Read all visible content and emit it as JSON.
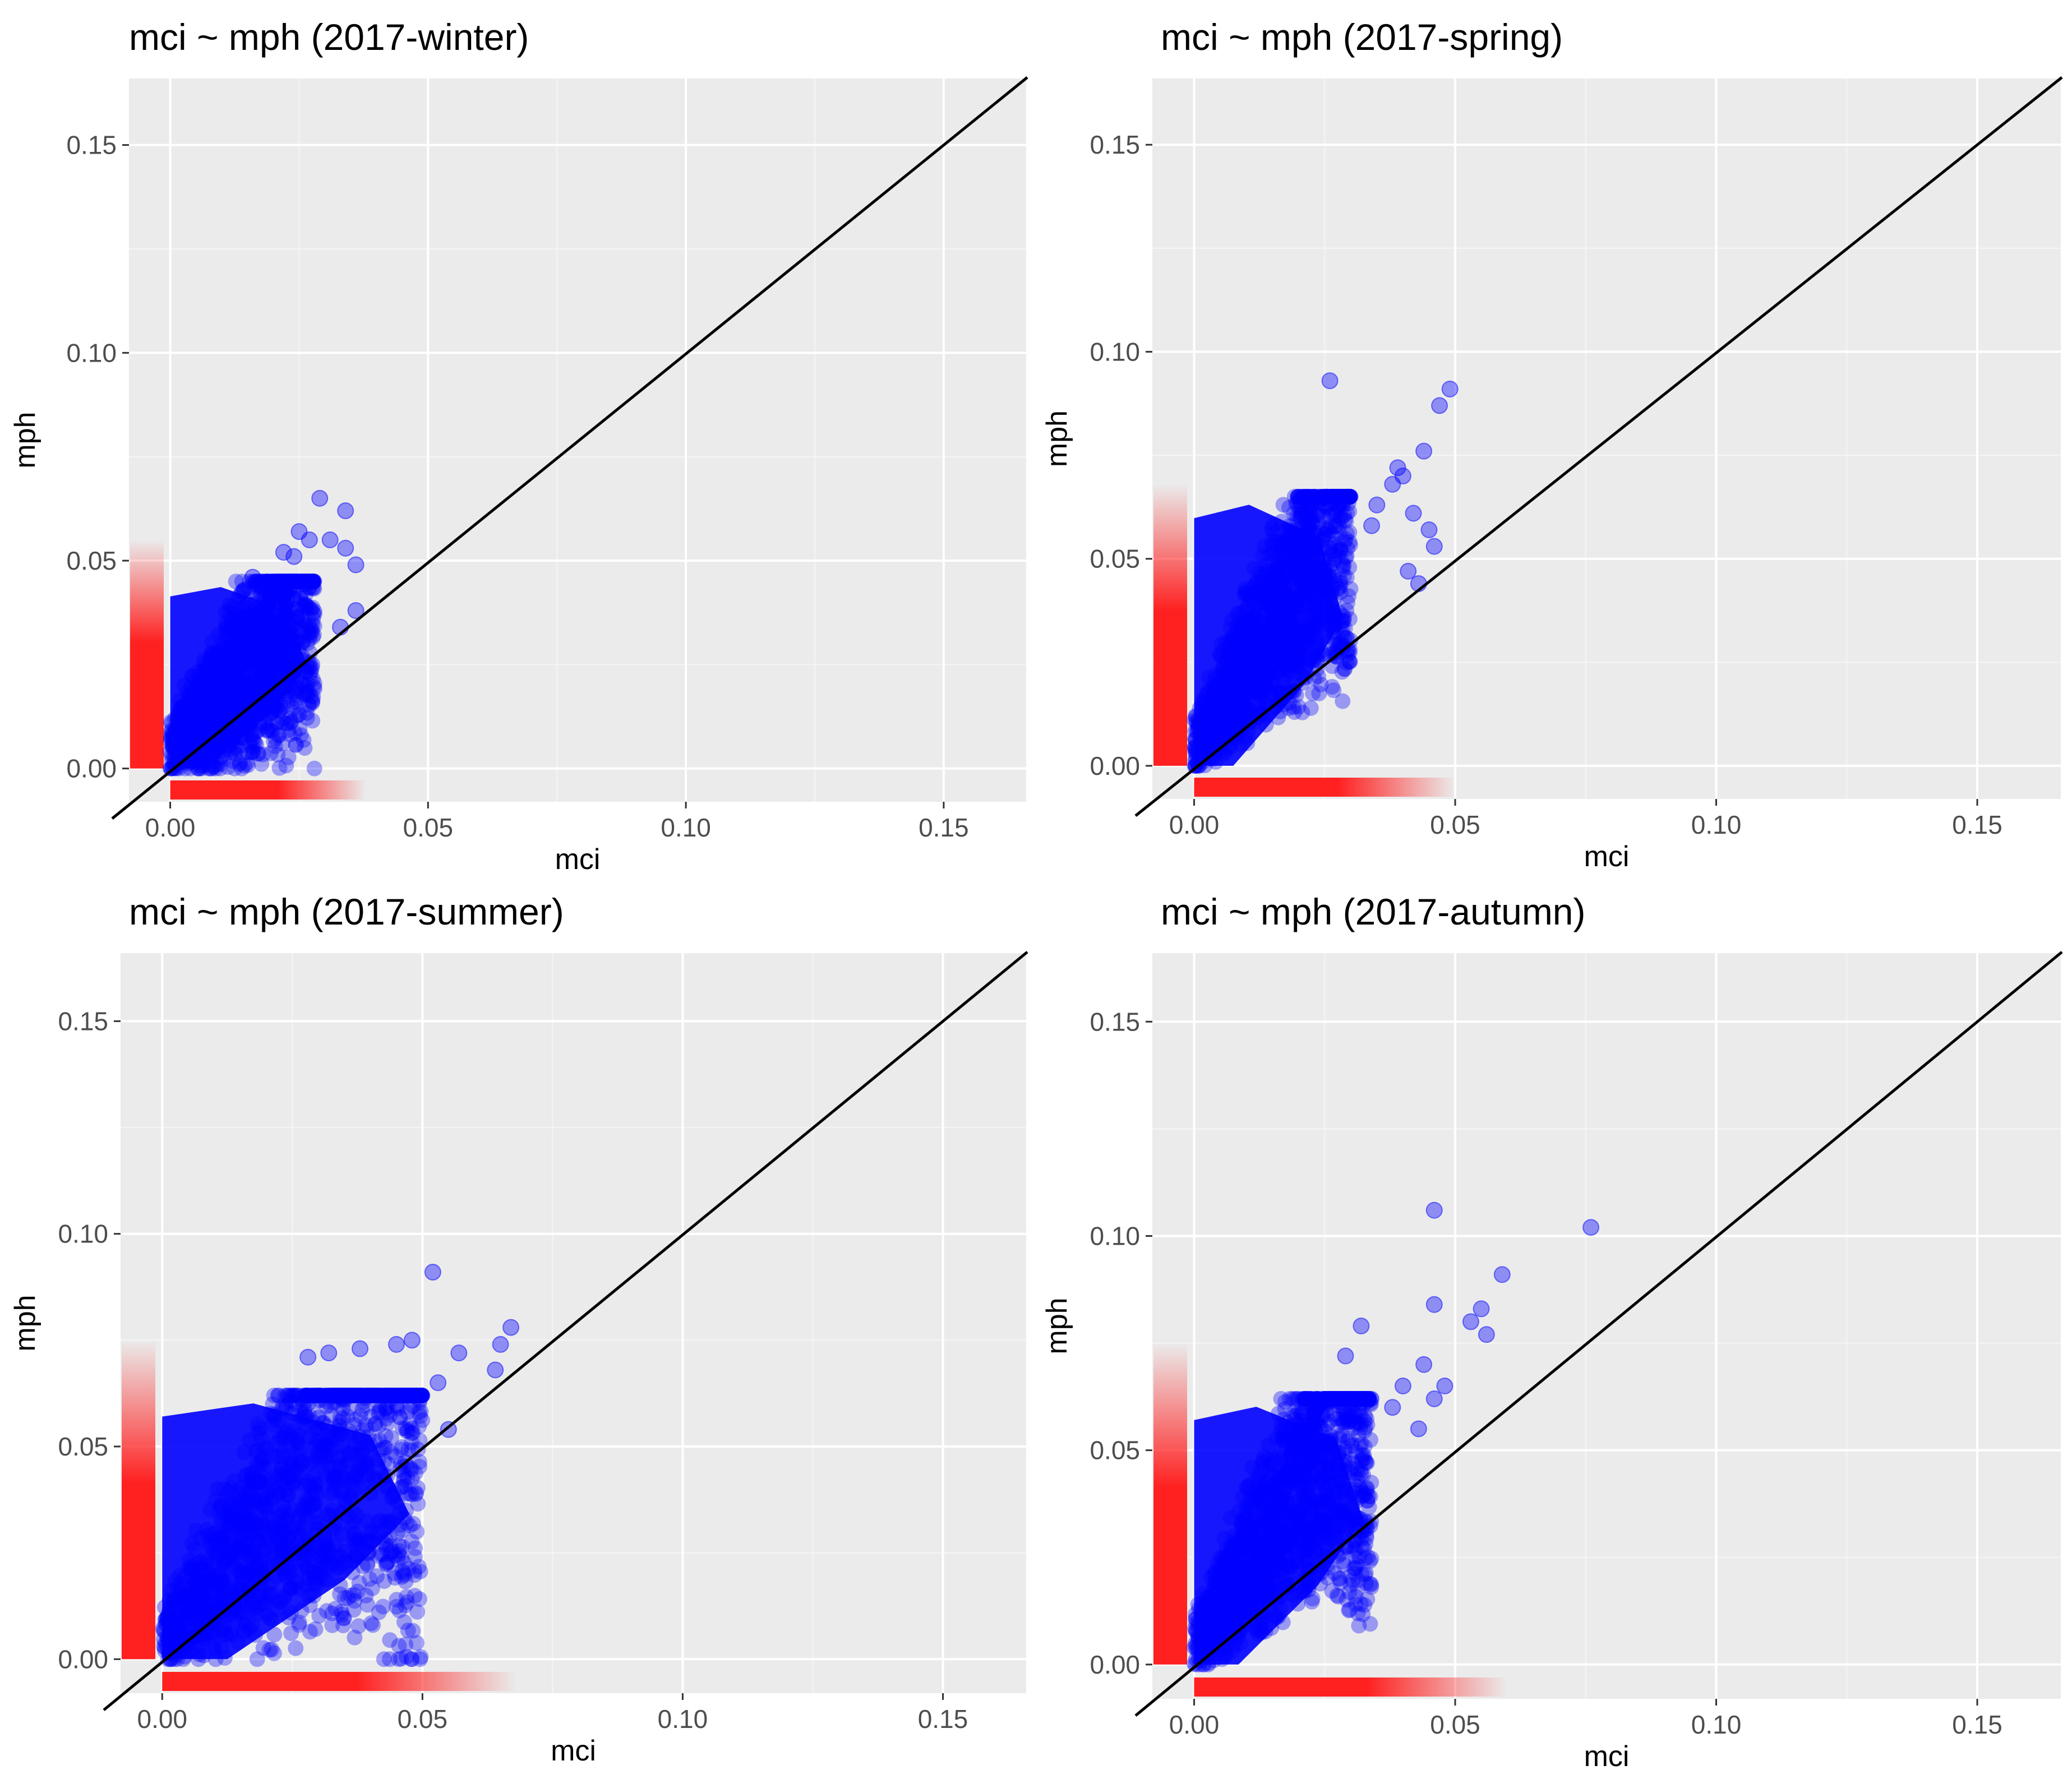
{
  "figure_name": "seasonal mci vs mph scatter panels",
  "chart_data": [
    {
      "type": "scatter",
      "title": "mci ~ mph (2017-winter)",
      "xlabel": "mci",
      "ylabel": "mph",
      "xlim": [
        -0.008,
        0.166
      ],
      "ylim": [
        -0.008,
        0.166
      ],
      "xticks": [
        0.0,
        0.05,
        0.1,
        0.15
      ],
      "yticks": [
        0.0,
        0.05,
        0.1,
        0.15
      ],
      "xtick_labels": [
        "0.00",
        "0.05",
        "0.10",
        "0.15"
      ],
      "ytick_labels": [
        "0.00",
        "0.05",
        "0.10",
        "0.15"
      ],
      "reference_line": "y = x",
      "point_color": "#0000ff",
      "rug_color": "#ff2020",
      "cloud": {
        "x_max": 0.028,
        "y_max": 0.045,
        "slope": 1.4
      },
      "outliers": [
        [
          0.029,
          0.065
        ],
        [
          0.034,
          0.062
        ],
        [
          0.025,
          0.057
        ],
        [
          0.027,
          0.055
        ],
        [
          0.031,
          0.055
        ],
        [
          0.036,
          0.049
        ],
        [
          0.034,
          0.053
        ],
        [
          0.024,
          0.051
        ],
        [
          0.036,
          0.038
        ],
        [
          0.033,
          0.034
        ],
        [
          0.022,
          0.052
        ],
        [
          0.016,
          0.046
        ]
      ],
      "rug_x_max": 0.038,
      "rug_y_max": 0.055
    },
    {
      "type": "scatter",
      "title": "mci ~ mph (2017-spring)",
      "xlabel": "mci",
      "ylabel": "mph",
      "xlim": [
        -0.008,
        0.166
      ],
      "ylim": [
        -0.008,
        0.166
      ],
      "xticks": [
        0.0,
        0.05,
        0.1,
        0.15
      ],
      "yticks": [
        0.0,
        0.05,
        0.1,
        0.15
      ],
      "xtick_labels": [
        "0.00",
        "0.05",
        "0.10",
        "0.15"
      ],
      "ytick_labels": [
        "0.00",
        "0.05",
        "0.10",
        "0.15"
      ],
      "reference_line": "y = x",
      "point_color": "#0000ff",
      "rug_color": "#ff2020",
      "cloud": {
        "x_max": 0.03,
        "y_max": 0.065,
        "slope": 2.2
      },
      "outliers": [
        [
          0.026,
          0.093
        ],
        [
          0.047,
          0.087
        ],
        [
          0.049,
          0.091
        ],
        [
          0.044,
          0.076
        ],
        [
          0.039,
          0.072
        ],
        [
          0.04,
          0.07
        ],
        [
          0.038,
          0.068
        ],
        [
          0.035,
          0.063
        ],
        [
          0.042,
          0.061
        ],
        [
          0.045,
          0.057
        ],
        [
          0.046,
          0.053
        ],
        [
          0.041,
          0.047
        ],
        [
          0.043,
          0.044
        ],
        [
          0.034,
          0.058
        ]
      ],
      "rug_x_max": 0.05,
      "rug_y_max": 0.068
    },
    {
      "type": "scatter",
      "title": "mci ~ mph (2017-summer)",
      "xlabel": "mci",
      "ylabel": "mph",
      "xlim": [
        -0.008,
        0.166
      ],
      "ylim": [
        -0.008,
        0.166
      ],
      "xticks": [
        0.0,
        0.05,
        0.1,
        0.15
      ],
      "yticks": [
        0.0,
        0.05,
        0.1,
        0.15
      ],
      "xtick_labels": [
        "0.00",
        "0.05",
        "0.10",
        "0.15"
      ],
      "ytick_labels": [
        "0.00",
        "0.05",
        "0.10",
        "0.15"
      ],
      "reference_line": "y = x",
      "point_color": "#0000ff",
      "rug_color": "#ff2020",
      "cloud": {
        "x_max": 0.05,
        "y_max": 0.062,
        "slope": 1.5
      },
      "outliers": [
        [
          0.052,
          0.091
        ],
        [
          0.067,
          0.078
        ],
        [
          0.065,
          0.074
        ],
        [
          0.064,
          0.068
        ],
        [
          0.057,
          0.072
        ],
        [
          0.055,
          0.054
        ],
        [
          0.048,
          0.075
        ],
        [
          0.045,
          0.074
        ],
        [
          0.038,
          0.073
        ],
        [
          0.032,
          0.072
        ],
        [
          0.028,
          0.071
        ],
        [
          0.053,
          0.065
        ]
      ],
      "rug_x_max": 0.068,
      "rug_y_max": 0.075
    },
    {
      "type": "scatter",
      "title": "mci ~ mph (2017-autumn)",
      "xlabel": "mci",
      "ylabel": "mph",
      "xlim": [
        -0.008,
        0.166
      ],
      "ylim": [
        -0.008,
        0.166
      ],
      "xticks": [
        0.0,
        0.05,
        0.1,
        0.15
      ],
      "yticks": [
        0.0,
        0.05,
        0.1,
        0.15
      ],
      "xtick_labels": [
        "0.00",
        "0.05",
        "0.10",
        "0.15"
      ],
      "ytick_labels": [
        "0.00",
        "0.05",
        "0.10",
        "0.15"
      ],
      "reference_line": "y = x",
      "point_color": "#0000ff",
      "rug_color": "#ff2020",
      "cloud": {
        "x_max": 0.034,
        "y_max": 0.062,
        "slope": 2.0
      },
      "outliers": [
        [
          0.076,
          0.102
        ],
        [
          0.046,
          0.106
        ],
        [
          0.059,
          0.091
        ],
        [
          0.056,
          0.077
        ],
        [
          0.046,
          0.084
        ],
        [
          0.053,
          0.08
        ],
        [
          0.055,
          0.083
        ],
        [
          0.044,
          0.07
        ],
        [
          0.048,
          0.065
        ],
        [
          0.046,
          0.062
        ],
        [
          0.04,
          0.065
        ],
        [
          0.032,
          0.079
        ],
        [
          0.029,
          0.072
        ],
        [
          0.038,
          0.06
        ],
        [
          0.043,
          0.055
        ]
      ],
      "rug_x_max": 0.06,
      "rug_y_max": 0.075
    }
  ]
}
